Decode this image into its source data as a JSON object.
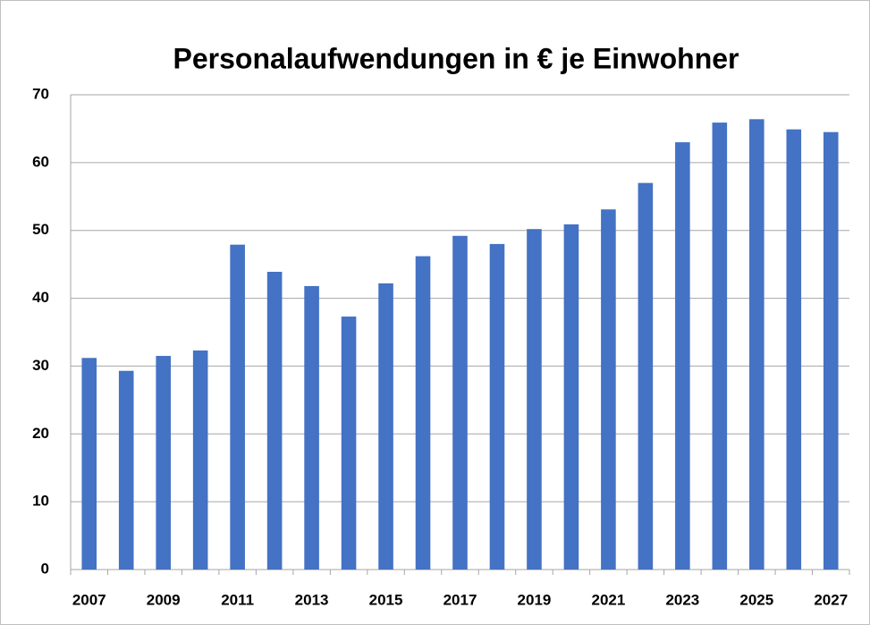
{
  "chart_data": {
    "type": "bar",
    "title": "Personalaufwendungen in € je Einwohner",
    "categories": [
      "2007",
      null,
      "2009",
      null,
      "2011",
      null,
      "2013",
      null,
      "2015",
      null,
      "2017",
      null,
      "2019",
      null,
      "2021",
      null,
      "2023",
      null,
      "2025",
      null,
      "2027"
    ],
    "values": [
      31.2,
      29.3,
      31.5,
      32.3,
      47.9,
      43.9,
      41.8,
      37.3,
      42.2,
      46.2,
      49.2,
      48.0,
      50.2,
      50.9,
      53.1,
      57.0,
      63.0,
      65.9,
      66.4,
      64.9,
      64.5
    ],
    "color": "#4472c4",
    "ylim": [
      0,
      70
    ],
    "yticks": [
      0,
      10,
      20,
      30,
      40,
      50,
      60,
      70
    ],
    "grid": true
  }
}
